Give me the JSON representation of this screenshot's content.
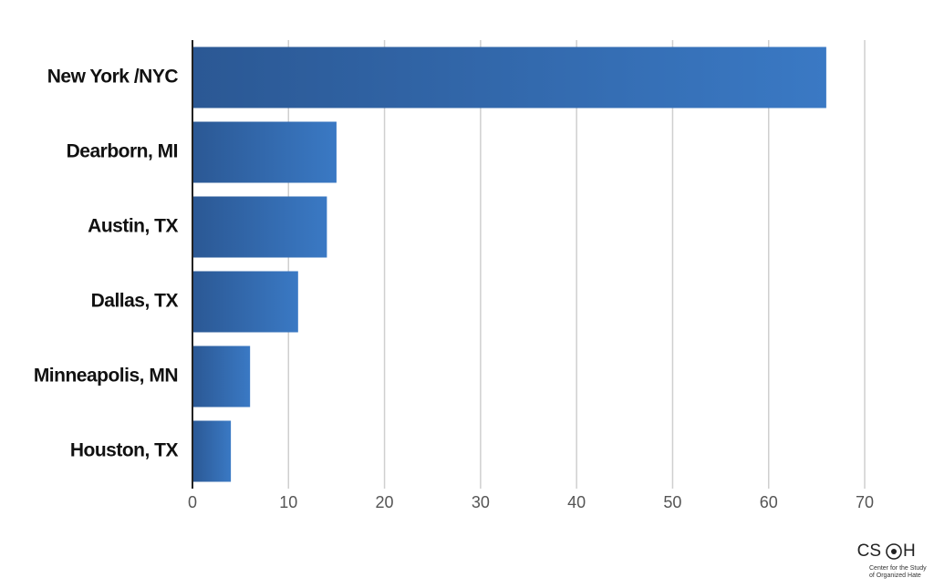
{
  "chart_data": {
    "type": "hbar",
    "categories": [
      "New York /NYC",
      "Dearborn, MI",
      "Austin, TX",
      "Dallas, TX",
      "Minneapolis, MN",
      "Houston, TX"
    ],
    "values": [
      66,
      15,
      14,
      11,
      6,
      4
    ],
    "color": "#3a79c4",
    "xlim": [
      0,
      70
    ],
    "xticks": [
      0,
      10,
      20,
      30,
      40,
      50,
      60,
      70
    ],
    "grid": true
  },
  "logo": {
    "left": "CS",
    "right": "H",
    "caption": [
      "Center for the Study",
      "of Organized Hate"
    ]
  }
}
